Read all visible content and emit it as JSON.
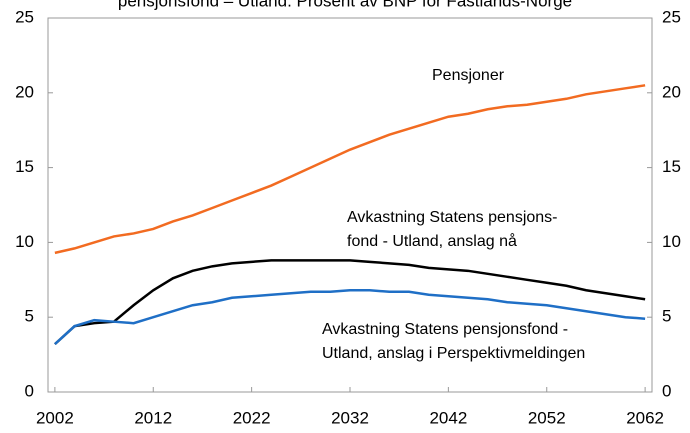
{
  "chart_data": {
    "type": "line",
    "title": "pensjonsfond – Utland. Prosent av BNP for Fastlands-Norge",
    "x": [
      2002,
      2004,
      2006,
      2008,
      2010,
      2012,
      2014,
      2016,
      2018,
      2020,
      2022,
      2024,
      2026,
      2028,
      2030,
      2032,
      2034,
      2036,
      2038,
      2040,
      2042,
      2044,
      2046,
      2048,
      2050,
      2052,
      2054,
      2056,
      2058,
      2060,
      2062
    ],
    "series": [
      {
        "color": "#f26b21",
        "values": [
          9.3,
          9.6,
          10.0,
          10.4,
          10.6,
          10.9,
          11.4,
          11.8,
          12.3,
          12.8,
          13.3,
          13.8,
          14.4,
          15.0,
          15.6,
          16.2,
          16.7,
          17.2,
          17.6,
          18.0,
          18.4,
          18.6,
          18.9,
          19.1,
          19.2,
          19.4,
          19.6,
          19.9,
          20.1,
          20.3,
          20.5
        ]
      },
      {
        "color": "#000000",
        "values": [
          3.2,
          4.4,
          4.6,
          4.7,
          5.8,
          6.8,
          7.6,
          8.1,
          8.4,
          8.6,
          8.7,
          8.8,
          8.8,
          8.8,
          8.8,
          8.8,
          8.7,
          8.6,
          8.5,
          8.3,
          8.2,
          8.1,
          7.9,
          7.7,
          7.5,
          7.3,
          7.1,
          6.8,
          6.6,
          6.4,
          6.2
        ]
      },
      {
        "color": "#1f6fc6",
        "values": [
          3.2,
          4.4,
          4.8,
          4.7,
          4.6,
          5.0,
          5.4,
          5.8,
          6.0,
          6.3,
          6.4,
          6.5,
          6.6,
          6.7,
          6.7,
          6.8,
          6.8,
          6.7,
          6.7,
          6.5,
          6.4,
          6.3,
          6.2,
          6.0,
          5.9,
          5.8,
          5.6,
          5.4,
          5.2,
          5.0,
          4.9
        ]
      }
    ],
    "annotations": [
      {
        "lines": [
          "Pensjoner"
        ]
      },
      {
        "lines": [
          "Avkastning Statens pensjons-",
          "fond - Utland, anslag nå"
        ]
      },
      {
        "lines": [
          "Avkastning Statens pensjonsfond -",
          "Utland, anslag i Perspektivmeldingen"
        ]
      }
    ],
    "xlim": [
      2001.3,
      2062.7
    ],
    "xticks": [
      2002,
      2012,
      2022,
      2032,
      2042,
      2052,
      2062
    ],
    "ylim": [
      0,
      25
    ],
    "yticks": [
      0,
      5,
      10,
      15,
      20,
      25
    ],
    "y2lim": [
      0,
      25
    ],
    "y2ticks": [
      0,
      5,
      10,
      15,
      20,
      25
    ],
    "grid": false
  }
}
